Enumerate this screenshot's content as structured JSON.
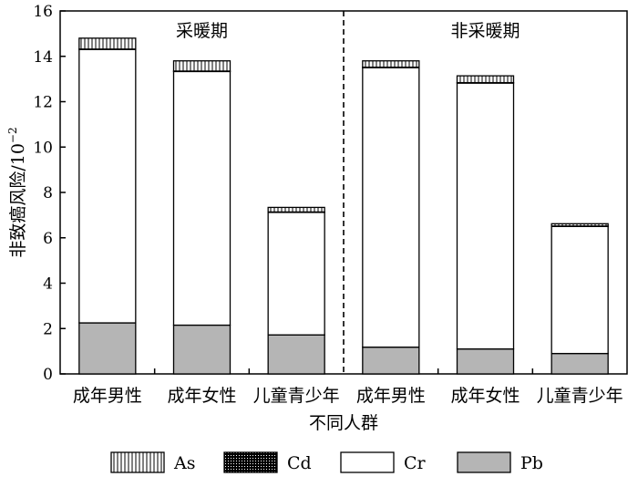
{
  "chart_data": {
    "type": "bar",
    "stacked": true,
    "xlabel": "不同人群",
    "ylabel": "非致癌风险/10",
    "ylabel_exponent": "−2",
    "ylim": [
      0,
      16
    ],
    "yticks": [
      0,
      2,
      4,
      6,
      8,
      10,
      12,
      14,
      16
    ],
    "groups": [
      {
        "label": "采暖期",
        "categories": [
          "成年男性",
          "成年女性",
          "儿童青少年"
        ]
      },
      {
        "label": "非采暖期",
        "categories": [
          "成年男性",
          "成年女性",
          "儿童青少年"
        ]
      }
    ],
    "categories": [
      "成年男性",
      "成年女性",
      "儿童青少年",
      "成年男性",
      "成年女性",
      "儿童青少年"
    ],
    "series": [
      {
        "name": "Pb",
        "values": [
          2.25,
          2.15,
          1.72,
          1.18,
          1.1,
          0.9
        ]
      },
      {
        "name": "Cr",
        "values": [
          12.05,
          11.18,
          5.4,
          12.32,
          11.72,
          5.6
        ]
      },
      {
        "name": "Cd",
        "values": [
          0.02,
          0.02,
          0.02,
          0.02,
          0.02,
          0.02
        ]
      },
      {
        "name": "As",
        "values": [
          0.48,
          0.45,
          0.2,
          0.28,
          0.3,
          0.1
        ]
      }
    ],
    "legend": {
      "placement": "bottom",
      "order": [
        "As",
        "Cd",
        "Cr",
        "Pb"
      ]
    },
    "fills": {
      "Pb": "#b5b5b5",
      "Cr": "#ffffff",
      "Cd": "dots",
      "As": "vertical-hatch"
    },
    "divider": "dashed-vertical-between-groups",
    "grid": false
  }
}
